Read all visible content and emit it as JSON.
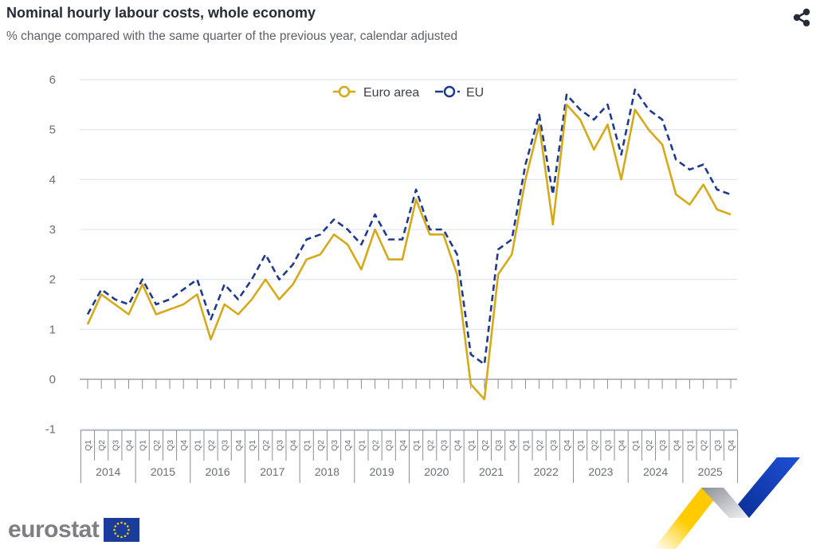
{
  "header": {
    "title": "Nominal hourly labour costs, whole economy",
    "subtitle": "% change compared with the same quarter of the previous year, calendar adjusted",
    "share_icon": "share-icon"
  },
  "footer": {
    "logo_text": "eurostat",
    "flag_icon": "eu-flag-icon"
  },
  "colors": {
    "euro_area": "#d4aa1a",
    "eu": "#1e3a8c",
    "grid": "#e3e6f3",
    "axis": "#8a8d93"
  },
  "chart_data": {
    "type": "line",
    "title": "Nominal hourly labour costs, whole economy",
    "subtitle": "% change compared with the same quarter of the previous year, calendar adjusted",
    "xlabel": "",
    "ylabel": "",
    "ylim": [
      -1,
      6
    ],
    "yticks": [
      -1,
      0,
      1,
      2,
      3,
      4,
      5,
      6
    ],
    "grid": true,
    "legend": {
      "placement": "top-center",
      "entries": [
        "Euro area",
        "EU"
      ]
    },
    "years": [
      "2014",
      "2015",
      "2016",
      "2017",
      "2018",
      "2019",
      "2020",
      "2021",
      "2022",
      "2023",
      "2024",
      "2025"
    ],
    "quarters": [
      "Q1",
      "Q2",
      "Q3",
      "Q4"
    ],
    "x": [
      "2014Q1",
      "2014Q2",
      "2014Q3",
      "2014Q4",
      "2015Q1",
      "2015Q2",
      "2015Q3",
      "2015Q4",
      "2016Q1",
      "2016Q2",
      "2016Q3",
      "2016Q4",
      "2017Q1",
      "2017Q2",
      "2017Q3",
      "2017Q4",
      "2018Q1",
      "2018Q2",
      "2018Q3",
      "2018Q4",
      "2019Q1",
      "2019Q2",
      "2019Q3",
      "2019Q4",
      "2020Q1",
      "2020Q2",
      "2020Q3",
      "2020Q4",
      "2021Q1",
      "2021Q2",
      "2021Q3",
      "2021Q4",
      "2022Q1",
      "2022Q2",
      "2022Q3",
      "2022Q4",
      "2023Q1",
      "2023Q2",
      "2023Q3",
      "2023Q4",
      "2024Q1",
      "2024Q2",
      "2024Q3",
      "2024Q4",
      "2025Q1",
      "2025Q2",
      "2025Q3",
      "2025Q4"
    ],
    "series": [
      {
        "name": "Euro area",
        "style": "solid",
        "values": [
          1.1,
          1.7,
          1.5,
          1.3,
          1.9,
          1.3,
          1.4,
          1.5,
          1.7,
          0.8,
          1.5,
          1.3,
          1.6,
          2.0,
          1.6,
          1.9,
          2.4,
          2.5,
          2.9,
          2.7,
          2.2,
          3.0,
          2.4,
          2.4,
          3.6,
          2.9,
          2.9,
          2.1,
          -0.1,
          -0.4,
          2.1,
          2.5,
          4.0,
          5.1,
          3.1,
          5.5,
          5.2,
          4.6,
          5.1,
          4.0,
          5.4,
          5.0,
          4.7,
          3.7,
          3.5,
          3.9,
          3.4,
          3.3
        ]
      },
      {
        "name": "EU",
        "style": "dashed",
        "values": [
          1.3,
          1.8,
          1.6,
          1.5,
          2.0,
          1.5,
          1.6,
          1.8,
          2.0,
          1.2,
          1.9,
          1.6,
          2.0,
          2.5,
          2.0,
          2.3,
          2.8,
          2.9,
          3.2,
          3.0,
          2.7,
          3.3,
          2.8,
          2.8,
          3.8,
          3.0,
          3.0,
          2.5,
          0.5,
          0.3,
          2.6,
          2.8,
          4.3,
          5.3,
          3.7,
          5.7,
          5.4,
          5.2,
          5.5,
          4.5,
          5.8,
          5.4,
          5.2,
          4.4,
          4.2,
          4.3,
          3.8,
          3.7
        ]
      }
    ]
  }
}
